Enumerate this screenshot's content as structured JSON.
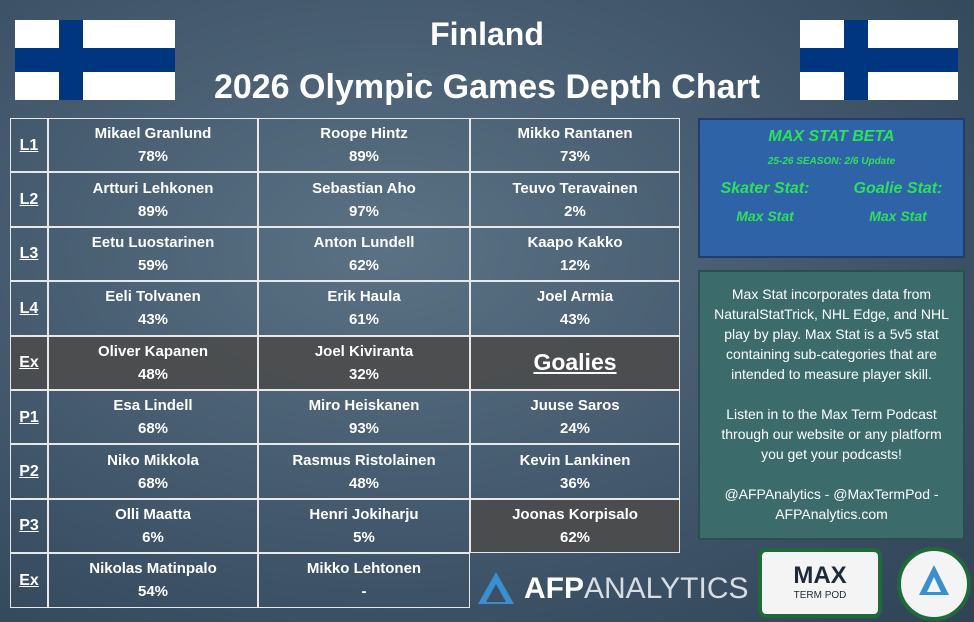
{
  "header": {
    "title": "Finland",
    "subtitle": "2026 Olympic Games Depth Chart"
  },
  "table": {
    "rows": [
      {
        "label": "L1",
        "cells": [
          {
            "name": "Mikael Granlund",
            "pct": "78%"
          },
          {
            "name": "Roope Hintz",
            "pct": "89%"
          },
          {
            "name": "Mikko Rantanen",
            "pct": "73%"
          }
        ]
      },
      {
        "label": "L2",
        "cells": [
          {
            "name": "Artturi Lehkonen",
            "pct": "89%"
          },
          {
            "name": "Sebastian Aho",
            "pct": "97%"
          },
          {
            "name": "Teuvo Teravainen",
            "pct": "2%"
          }
        ]
      },
      {
        "label": "L3",
        "cells": [
          {
            "name": "Eetu Luostarinen",
            "pct": "59%"
          },
          {
            "name": "Anton Lundell",
            "pct": "62%"
          },
          {
            "name": "Kaapo Kakko",
            "pct": "12%"
          }
        ]
      },
      {
        "label": "L4",
        "cells": [
          {
            "name": "Eeli Tolvanen",
            "pct": "43%"
          },
          {
            "name": "Erik Haula",
            "pct": "61%"
          },
          {
            "name": "Joel Armia",
            "pct": "43%"
          }
        ]
      },
      {
        "label": "Ex",
        "cells": [
          {
            "name": "Oliver Kapanen",
            "pct": "48%"
          },
          {
            "name": "Joel Kiviranta",
            "pct": "32%"
          },
          {
            "heading": "Goalies"
          }
        ]
      },
      {
        "label": "P1",
        "cells": [
          {
            "name": "Esa Lindell",
            "pct": "68%"
          },
          {
            "name": "Miro Heiskanen",
            "pct": "93%"
          },
          {
            "name": "Juuse Saros",
            "pct": "24%"
          }
        ]
      },
      {
        "label": "P2",
        "cells": [
          {
            "name": "Niko Mikkola",
            "pct": "68%"
          },
          {
            "name": "Rasmus Ristolainen",
            "pct": "48%"
          },
          {
            "name": "Kevin Lankinen",
            "pct": "36%"
          }
        ]
      },
      {
        "label": "P3",
        "cells": [
          {
            "name": "Olli Maatta",
            "pct": "6%"
          },
          {
            "name": "Henri Jokiharju",
            "pct": "5%"
          },
          {
            "name": "Joonas Korpisalo",
            "pct": "62%"
          }
        ]
      },
      {
        "label": "Ex",
        "cells": [
          {
            "name": "Nikolas Matinpalo",
            "pct": "54%"
          },
          {
            "name": "Mikko Lehtonen",
            "pct": "-"
          }
        ]
      }
    ]
  },
  "beta": {
    "title": "MAX STAT BETA",
    "update": "25-26 SEASON: 2/6 Update",
    "skater_label": "Skater Stat:",
    "skater_value": "Max Stat",
    "goalie_label": "Goalie Stat:",
    "goalie_value": "Max Stat"
  },
  "info": {
    "paragraphs": [
      "Max Stat incorporates data from NaturalStatTrick, NHL Edge, and NHL play by play. Max Stat is a 5v5 stat containing sub-categories that are intended to measure player skill.",
      "Listen in to the Max Term Podcast through our website or any platform you get your podcasts!",
      "@AFPAnalytics - @MaxTermPod - AFPAnalytics.com"
    ]
  },
  "logos": {
    "afp": "AFP",
    "analytics": "ANALYTICS",
    "max": "MAX",
    "term_pod": "TERM POD"
  }
}
